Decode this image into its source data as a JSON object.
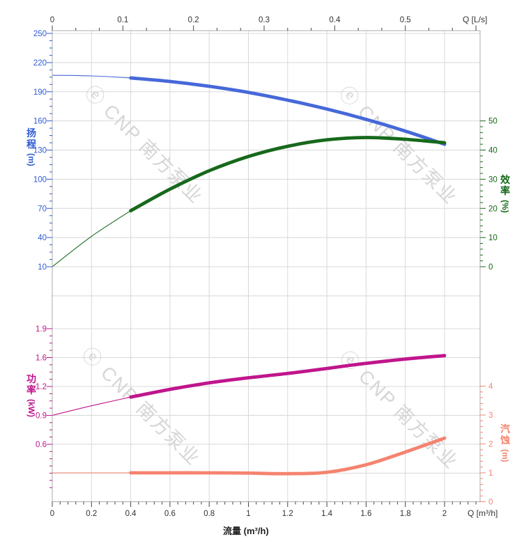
{
  "watermark": {
    "logo": "ⓔ",
    "brand": "CNP 南方泵业"
  },
  "axis_titles": {
    "head": {
      "title": "扬程",
      "unit": "(m)"
    },
    "efficiency": {
      "title": "效率",
      "unit": "(%)"
    },
    "power": {
      "title": "功率",
      "unit": "(kW)"
    },
    "npsh": {
      "title": "汽蚀",
      "unit": "(m)"
    },
    "flow_top_unit": "Q [L/s]",
    "flow_bottom_unit": "Q [m³/h]",
    "flow_bottom_label": "流量 (m³/h)"
  },
  "colors": {
    "head_curve": "#4668D9",
    "head_label": "#2E5BD6",
    "efficiency_curve": "#17691B",
    "efficiency_label": "#156817",
    "power_curve": "#C0158C",
    "npsh_curve": "#F5836F",
    "axis_text_dark": "#333333",
    "grid": "#D8D8D8",
    "border": "#ABABAB",
    "watermark": "#CFCFCF"
  },
  "chart_data": {
    "type": "line",
    "x_m3h": [
      0,
      0.2,
      0.4,
      0.6,
      0.8,
      1.0,
      1.2,
      1.4,
      1.6,
      1.8,
      2.0
    ],
    "x_axis": {
      "bottom_ticks": [
        "0",
        "0.2",
        "0.4",
        "0.6",
        "0.8",
        "1",
        "1.2",
        "1.4",
        "1.6",
        "1.8",
        "2"
      ],
      "top_ticks_Ls": [
        "0",
        "0.1",
        "0.2",
        "0.3",
        "0.4",
        "0.5"
      ],
      "range_m3h": [
        0,
        2.18
      ],
      "grid": "on"
    },
    "panels": [
      {
        "id": "head-efficiency",
        "left_axis": {
          "name": "扬程",
          "unit": "m",
          "ticks": [
            "250",
            "220",
            "190",
            "160",
            "130",
            "100",
            "70",
            "40",
            "10"
          ]
        },
        "right_axis": {
          "name": "效率",
          "unit": "%",
          "ticks": [
            "50",
            "40",
            "30",
            "20",
            "10",
            "0"
          ]
        },
        "series": [
          {
            "name": "head",
            "axis": "left",
            "values": [
              207,
              206.3,
              204.2,
              200.6,
              195.6,
              189.3,
              181.4,
              172.2,
              161.6,
              149.5,
              136
            ],
            "thin_until_m3h": 0.4
          },
          {
            "name": "efficiency",
            "axis": "right",
            "values": [
              0,
              10.4,
              19.2,
              26.6,
              32.9,
              37.8,
              41.3,
              43.5,
              44.3,
              43.7,
              42.5
            ],
            "thin_until_m3h": 0.4
          }
        ]
      },
      {
        "id": "power-npsh",
        "left_axis": {
          "name": "功率",
          "unit": "kW",
          "ticks": [
            "1.9",
            "1.6",
            "1.2",
            "0.9",
            "0.6"
          ]
        },
        "right_axis": {
          "name": "汽蚀",
          "unit": "m",
          "ticks": [
            "4",
            "3",
            "2",
            "1",
            "0"
          ]
        },
        "series": [
          {
            "name": "power",
            "axis": "left",
            "values": [
              0.9,
              1.0,
              1.09,
              1.17,
              1.25,
              1.32,
              1.38,
              1.45,
              1.52,
              1.58,
              1.62
            ],
            "thin_until_m3h": 0.4
          },
          {
            "name": "npsh",
            "axis": "right",
            "values": [
              1,
              1,
              1,
              1,
              1,
              0.99,
              0.97,
              1.02,
              1.28,
              1.72,
              2.2
            ],
            "thin_until_m3h": 0.4
          }
        ]
      }
    ]
  }
}
